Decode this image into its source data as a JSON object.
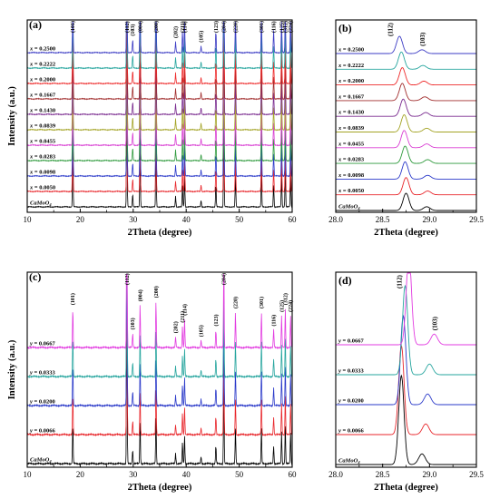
{
  "chart_data": [
    {
      "panel": "(a)",
      "type": "line",
      "xlabel": "2Theta (degree)",
      "ylabel": "Intensity (a.u.)",
      "xlim": [
        10,
        60
      ],
      "xticks": [
        "10",
        "20",
        "30",
        "40",
        "50",
        "60"
      ],
      "series": [
        {
          "name": "CaMoO4",
          "color": "#000000"
        },
        {
          "name": "x = 0.0050",
          "color": "#e8262b"
        },
        {
          "name": "x = 0.0098",
          "color": "#2a39c9"
        },
        {
          "name": "x = 0.0283",
          "color": "#2e9a3c"
        },
        {
          "name": "x = 0.0455",
          "color": "#d93fd3"
        },
        {
          "name": "x = 0.0839",
          "color": "#a3a324"
        },
        {
          "name": "x = 0.1430",
          "color": "#7a2b8f"
        },
        {
          "name": "x = 0.1667",
          "color": "#a12d2d"
        },
        {
          "name": "x = 0.2000",
          "color": "#ee2a2a"
        },
        {
          "name": "x = 0.2222",
          "color": "#26a59e"
        },
        {
          "name": "x = 0.2500",
          "color": "#3b3bc4"
        }
      ],
      "peaks": [
        {
          "x": 18.6,
          "h": 0.45,
          "label": "(101)"
        },
        {
          "x": 28.8,
          "h": 1.0,
          "label": "(112)"
        },
        {
          "x": 29.9,
          "h": 0.12,
          "label": "(103)"
        },
        {
          "x": 31.3,
          "h": 0.5,
          "label": "(004)"
        },
        {
          "x": 34.3,
          "h": 0.5,
          "label": "(200)"
        },
        {
          "x": 38.0,
          "h": 0.1,
          "label": "(202)"
        },
        {
          "x": 39.3,
          "h": 0.2,
          "label": "(211)"
        },
        {
          "x": 39.7,
          "h": 0.3,
          "label": "(114)"
        },
        {
          "x": 42.8,
          "h": 0.06,
          "label": "(105)"
        },
        {
          "x": 45.6,
          "h": 0.2,
          "label": "(123)"
        },
        {
          "x": 47.1,
          "h": 0.75,
          "label": "(204)"
        },
        {
          "x": 49.3,
          "h": 0.3,
          "label": "(220)"
        },
        {
          "x": 54.2,
          "h": 0.35,
          "label": "(301)"
        },
        {
          "x": 56.5,
          "h": 0.2,
          "label": "(116)"
        },
        {
          "x": 58.0,
          "h": 0.3,
          "label": "(125)"
        },
        {
          "x": 58.7,
          "h": 0.4,
          "label": "(312)"
        },
        {
          "x": 59.7,
          "h": 0.3,
          "label": "(224)"
        }
      ]
    },
    {
      "panel": "(b)",
      "type": "line",
      "xlabel": "2Theta (degree)",
      "xlim": [
        28.0,
        29.5
      ],
      "xticks": [
        "28.0",
        "28.5",
        "29.0",
        "29.5"
      ],
      "series": [
        {
          "name": "CaMoO4",
          "color": "#000000",
          "p112": 28.75,
          "p103": 28.97
        },
        {
          "name": "x = 0.0050",
          "color": "#e8262b",
          "p112": 28.75,
          "p103": 28.98
        },
        {
          "name": "x = 0.0098",
          "color": "#2a39c9",
          "p112": 28.74,
          "p103": 28.98
        },
        {
          "name": "x = 0.0283",
          "color": "#2e9a3c",
          "p112": 28.74,
          "p103": 28.98
        },
        {
          "name": "x = 0.0455",
          "color": "#d93fd3",
          "p112": 28.73,
          "p103": 28.97
        },
        {
          "name": "x = 0.0839",
          "color": "#a3a324",
          "p112": 28.73,
          "p103": 28.97
        },
        {
          "name": "x = 0.1430",
          "color": "#7a2b8f",
          "p112": 28.72,
          "p103": 28.96
        },
        {
          "name": "x = 0.1667",
          "color": "#a12d2d",
          "p112": 28.71,
          "p103": 28.95
        },
        {
          "name": "x = 0.2000",
          "color": "#ee2a2a",
          "p112": 28.71,
          "p103": 28.94
        },
        {
          "name": "x = 0.2222",
          "color": "#26a59e",
          "p112": 28.7,
          "p103": 28.93
        },
        {
          "name": "x = 0.2500",
          "color": "#3b3bc4",
          "p112": 28.68,
          "p103": 28.92
        }
      ],
      "annotations": [
        "(112)",
        "(103)"
      ]
    },
    {
      "panel": "(c)",
      "type": "line",
      "xlabel": "2Theta (degree)",
      "ylabel": "Intensity (a.u.)",
      "xlim": [
        10,
        60
      ],
      "xticks": [
        "10",
        "20",
        "30",
        "40",
        "50",
        "60"
      ],
      "series": [
        {
          "name": "CaMoO4",
          "color": "#000000"
        },
        {
          "name": "y = 0.0066",
          "color": "#e8262b"
        },
        {
          "name": "y = 0.0200",
          "color": "#2a39c9"
        },
        {
          "name": "y = 0.0333",
          "color": "#26a59e"
        },
        {
          "name": "y = 0.0667",
          "color": "#e23be0"
        }
      ],
      "peaks": [
        {
          "x": 18.6,
          "h": 0.22,
          "label": "(101)"
        },
        {
          "x": 28.8,
          "h": 1.0,
          "label": "(112)"
        },
        {
          "x": 29.9,
          "h": 0.08,
          "label": "(103)"
        },
        {
          "x": 31.3,
          "h": 0.24,
          "label": "(004)"
        },
        {
          "x": 34.3,
          "h": 0.26,
          "label": "(200)"
        },
        {
          "x": 38.0,
          "h": 0.06,
          "label": "(202)"
        },
        {
          "x": 39.3,
          "h": 0.12,
          "label": "(211)"
        },
        {
          "x": 39.7,
          "h": 0.16,
          "label": "(114)"
        },
        {
          "x": 42.8,
          "h": 0.04,
          "label": "(105)"
        },
        {
          "x": 45.6,
          "h": 0.1,
          "label": "(123)"
        },
        {
          "x": 47.1,
          "h": 0.5,
          "label": "(204)"
        },
        {
          "x": 49.3,
          "h": 0.2,
          "label": "(220)"
        },
        {
          "x": 54.2,
          "h": 0.2,
          "label": "(301)"
        },
        {
          "x": 56.5,
          "h": 0.1,
          "label": "(116)"
        },
        {
          "x": 58.0,
          "h": 0.18,
          "label": "(125)"
        },
        {
          "x": 58.7,
          "h": 0.22,
          "label": "(312)"
        },
        {
          "x": 59.7,
          "h": 0.18,
          "label": "(224)"
        }
      ]
    },
    {
      "panel": "(d)",
      "type": "line",
      "xlabel": "2Theta (degree)",
      "xlim": [
        28.0,
        29.5
      ],
      "xticks": [
        "28.0",
        "28.5",
        "29.0",
        "29.5"
      ],
      "series": [
        {
          "name": "CaMoO4",
          "color": "#000000",
          "p112": 28.7,
          "p103": 28.92
        },
        {
          "name": "y = 0.0066",
          "color": "#e8262b",
          "p112": 28.7,
          "p103": 28.96
        },
        {
          "name": "y = 0.0200",
          "color": "#2a39c9",
          "p112": 28.72,
          "p103": 28.98
        },
        {
          "name": "y = 0.0333",
          "color": "#26a59e",
          "p112": 28.74,
          "p103": 29.0
        },
        {
          "name": "y = 0.0667",
          "color": "#e23be0",
          "p112": 28.78,
          "p103": 29.05
        }
      ],
      "annotations": [
        "(112)",
        "(103)"
      ]
    }
  ]
}
